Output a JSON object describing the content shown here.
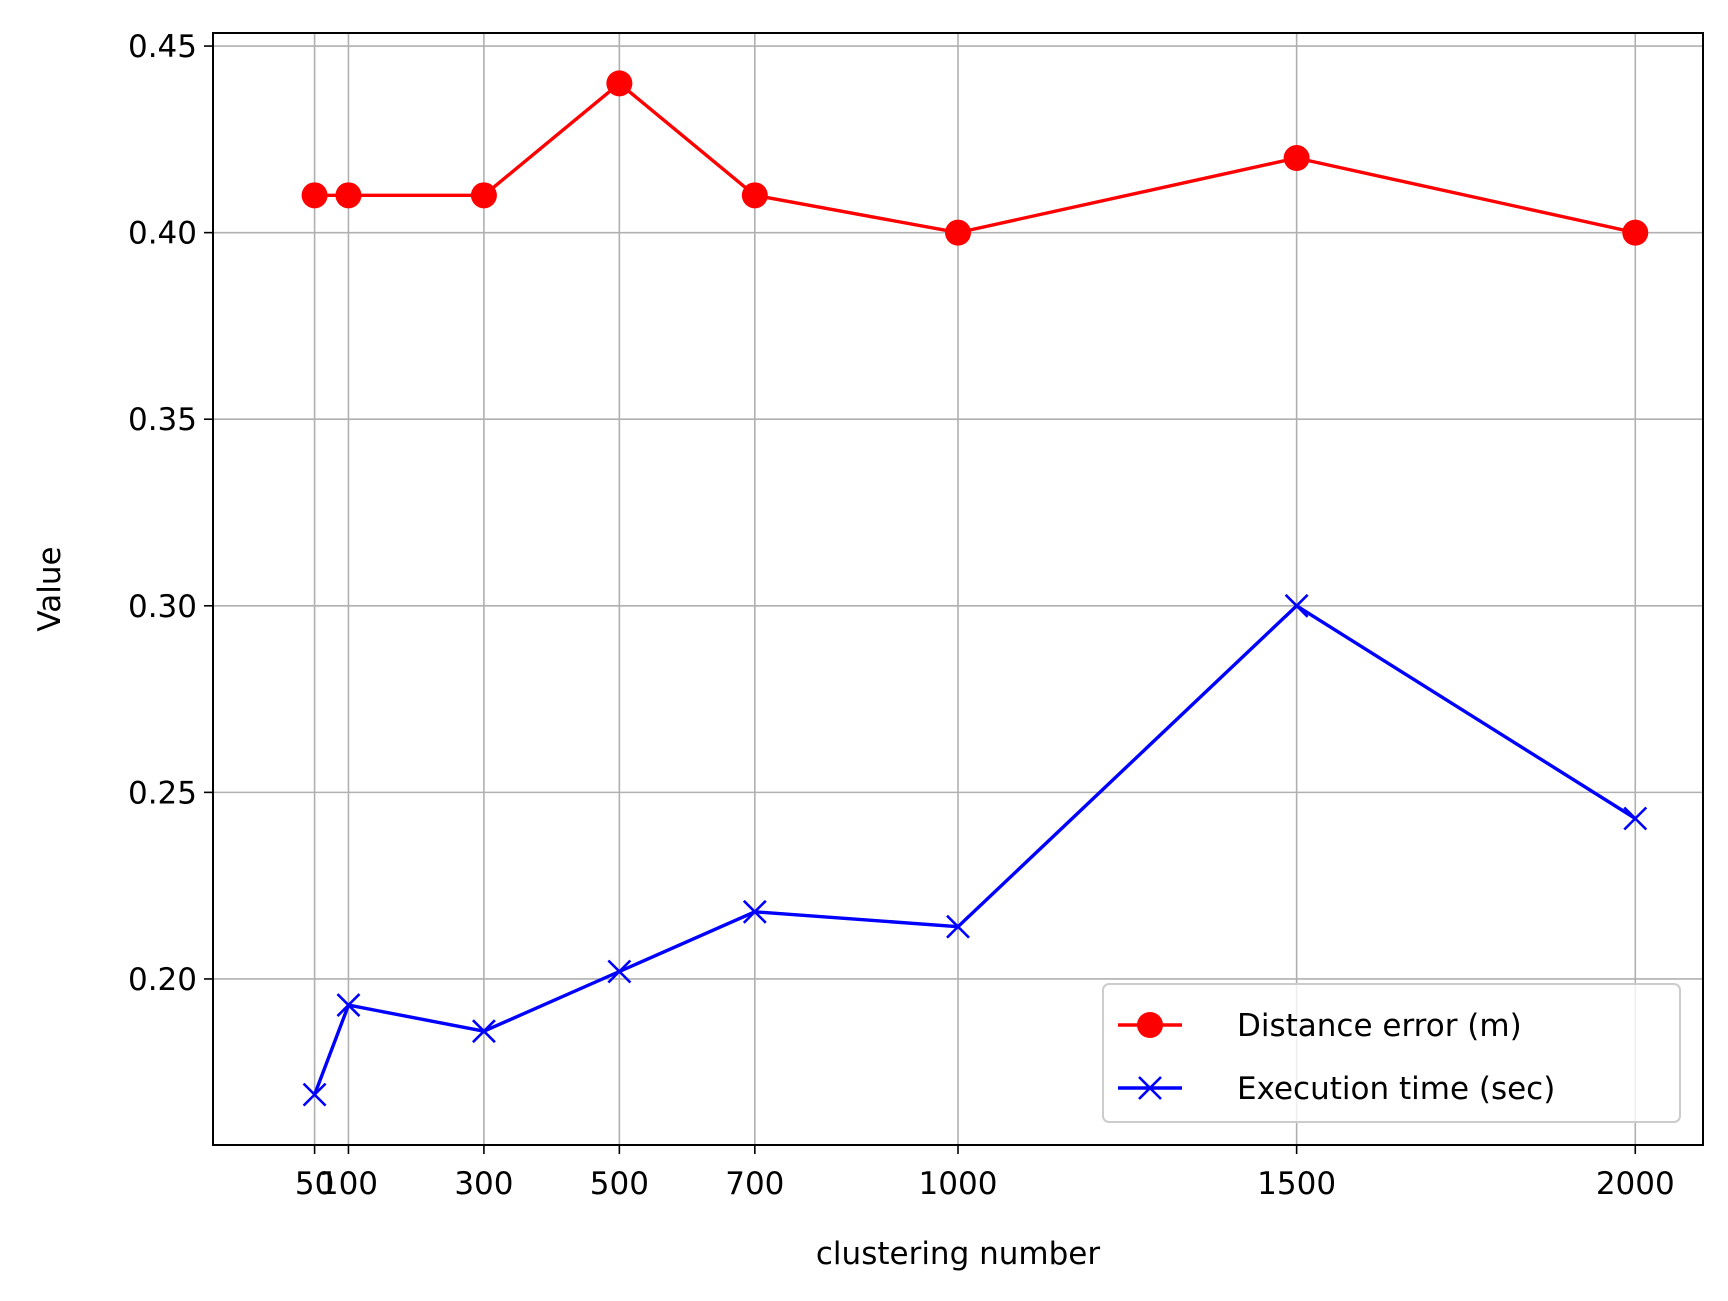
{
  "chart_data": {
    "type": "line",
    "title": "",
    "xlabel": "clustering number",
    "ylabel": "Value",
    "x": [
      50,
      100,
      300,
      500,
      700,
      1000,
      1500,
      2000
    ],
    "x_ticks": [
      50,
      100,
      300,
      500,
      700,
      1000,
      1500,
      2000
    ],
    "y_ticks": [
      0.2,
      0.25,
      0.3,
      0.35,
      0.4,
      0.45
    ],
    "xlim": [
      -100,
      2100
    ],
    "ylim": [
      0.1555,
      0.4535
    ],
    "grid": true,
    "legend_position": "lower-right",
    "series": [
      {
        "name": "Distance error (m)",
        "values": [
          0.41,
          0.41,
          0.41,
          0.44,
          0.41,
          0.4,
          0.42,
          0.4
        ],
        "color": "#ff0000",
        "marker": "circle"
      },
      {
        "name": "Execution time (sec)",
        "values": [
          0.169,
          0.193,
          0.186,
          0.202,
          0.218,
          0.214,
          0.3,
          0.243
        ],
        "color": "#0000ff",
        "marker": "x"
      }
    ]
  }
}
